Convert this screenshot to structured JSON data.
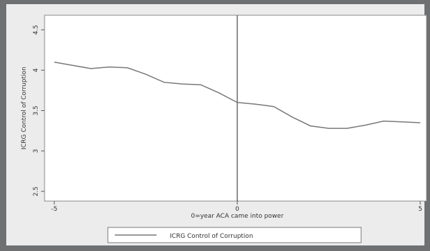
{
  "chart_data": {
    "type": "line",
    "xlabel": "0=year ACA came into power",
    "ylabel": "ICRG Control of Corruption",
    "xlim": [
      -5,
      5
    ],
    "ylim": [
      2.5,
      4.5
    ],
    "x_ticks": [
      -5,
      0,
      5
    ],
    "y_ticks": [
      2.5,
      3,
      3.5,
      4,
      4.5
    ],
    "y_tick_labels": [
      "2.5",
      "3",
      "3.5",
      "4",
      "4.5"
    ],
    "x_tick_labels": [
      "-5",
      "0",
      "5"
    ],
    "vertical_line_x": 0,
    "legend": "bottom-center",
    "grid": false,
    "series": [
      {
        "name": "ICRG Control of Corruption",
        "color": "#777777",
        "x": [
          -5,
          -4.5,
          -4,
          -3.5,
          -3,
          -2.5,
          -2,
          -1.5,
          -1,
          -0.5,
          0,
          0.5,
          1,
          1.5,
          2,
          2.5,
          3,
          3.5,
          4,
          4.5,
          5
        ],
        "y": [
          4.1,
          4.06,
          4.02,
          4.04,
          4.03,
          3.95,
          3.85,
          3.83,
          3.82,
          3.72,
          3.6,
          3.58,
          3.55,
          3.42,
          3.31,
          3.28,
          3.28,
          3.32,
          3.37,
          3.36,
          3.35
        ]
      }
    ]
  },
  "colors": {
    "frame": "#6e7072",
    "plot_background": "#ffffff",
    "outer_background": "#ececec",
    "line": "#777777"
  }
}
